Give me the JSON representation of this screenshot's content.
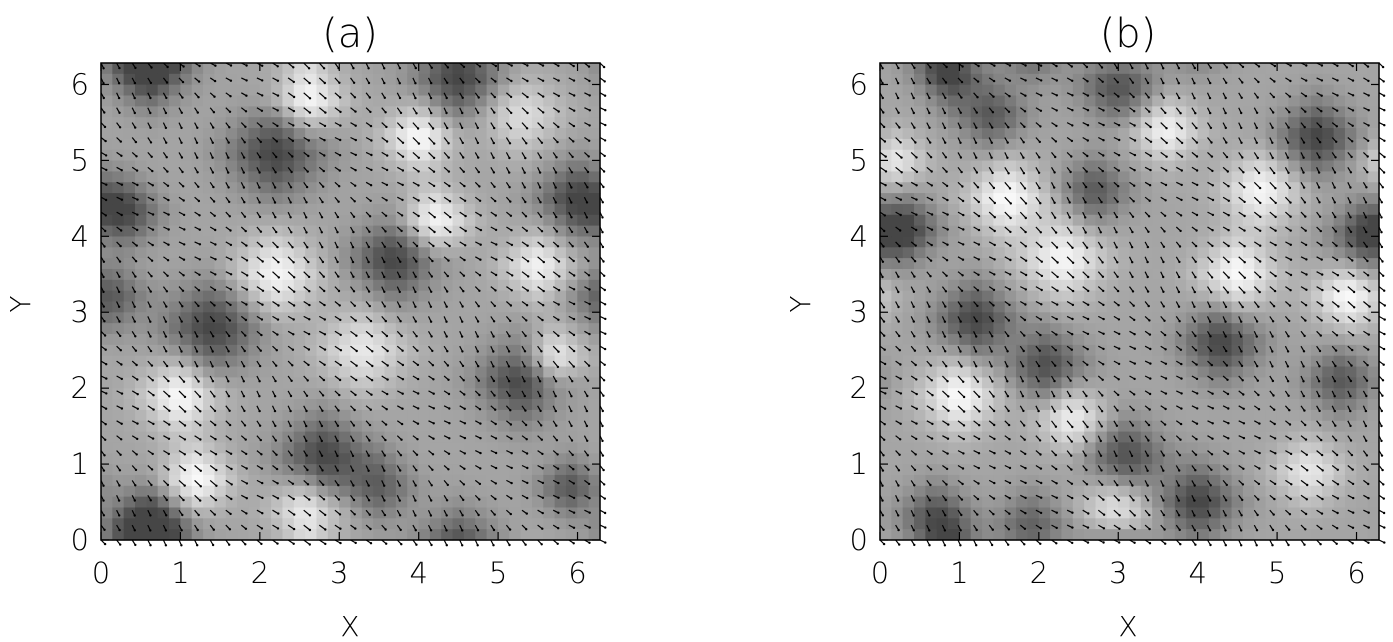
{
  "chart_data": [
    {
      "type": "heatmap",
      "title": "(a)",
      "xlabel": "X",
      "ylabel": "Y",
      "xlim": [
        0,
        6.283
      ],
      "ylim": [
        0,
        6.283
      ],
      "xticks": [
        "0",
        "1",
        "2",
        "3",
        "4",
        "5",
        "6"
      ],
      "yticks": [
        "0",
        "1",
        "2",
        "3",
        "4",
        "5",
        "6"
      ],
      "colormap": "grayscale",
      "overlay": "vector field arrows, predominantly pointing down-right",
      "dominant_band_direction": "diagonal from upper-left to lower-right",
      "colors": {
        "dark": "#111111",
        "light": "#f5f5f5",
        "arrow": "#000000"
      },
      "blobs": [
        {
          "x": 0.6,
          "y": 0.2,
          "v": -1.0,
          "s": 0.45
        },
        {
          "x": 2.8,
          "y": 1.1,
          "v": -1.0,
          "s": 0.5
        },
        {
          "x": 3.5,
          "y": 0.7,
          "v": -0.7,
          "s": 0.4
        },
        {
          "x": 1.4,
          "y": 2.8,
          "v": -1.0,
          "s": 0.55
        },
        {
          "x": 0.1,
          "y": 3.2,
          "v": -0.8,
          "s": 0.4
        },
        {
          "x": 5.3,
          "y": 2.1,
          "v": -1.0,
          "s": 0.5
        },
        {
          "x": 3.7,
          "y": 3.7,
          "v": -1.0,
          "s": 0.5
        },
        {
          "x": 0.3,
          "y": 4.3,
          "v": -0.9,
          "s": 0.4
        },
        {
          "x": 2.2,
          "y": 5.1,
          "v": -1.0,
          "s": 0.55
        },
        {
          "x": 0.6,
          "y": 6.2,
          "v": -0.9,
          "s": 0.45
        },
        {
          "x": 4.5,
          "y": 6.1,
          "v": -1.0,
          "s": 0.5
        },
        {
          "x": 6.0,
          "y": 4.5,
          "v": -1.0,
          "s": 0.45
        },
        {
          "x": 5.9,
          "y": 0.7,
          "v": -0.8,
          "s": 0.35
        },
        {
          "x": 1.0,
          "y": 1.9,
          "v": 0.9,
          "s": 0.45
        },
        {
          "x": 1.2,
          "y": 0.8,
          "v": 0.9,
          "s": 0.4
        },
        {
          "x": 2.6,
          "y": 0.4,
          "v": 0.8,
          "s": 0.4
        },
        {
          "x": 2.6,
          "y": 5.8,
          "v": 0.9,
          "s": 0.4
        },
        {
          "x": 4.0,
          "y": 5.3,
          "v": 0.9,
          "s": 0.4
        },
        {
          "x": 4.2,
          "y": 4.2,
          "v": 0.9,
          "s": 0.4
        },
        {
          "x": 5.5,
          "y": 3.6,
          "v": 0.8,
          "s": 0.4
        },
        {
          "x": 5.7,
          "y": 2.4,
          "v": 0.9,
          "s": 0.35
        },
        {
          "x": 2.2,
          "y": 3.5,
          "v": 0.85,
          "s": 0.5
        },
        {
          "x": 3.3,
          "y": 2.5,
          "v": 0.7,
          "s": 0.5
        },
        {
          "x": 5.3,
          "y": 5.6,
          "v": 0.6,
          "s": 0.45
        }
      ]
    },
    {
      "type": "heatmap",
      "title": "(b)",
      "xlabel": "X",
      "ylabel": "Y",
      "xlim": [
        0,
        6.283
      ],
      "ylim": [
        0,
        6.283
      ],
      "xticks": [
        "0",
        "1",
        "2",
        "3",
        "4",
        "5",
        "6"
      ],
      "yticks": [
        "0",
        "1",
        "2",
        "3",
        "4",
        "5",
        "6"
      ],
      "colormap": "grayscale",
      "overlay": "vector field arrows, predominantly pointing down-right",
      "dominant_band_direction": "diagonal from upper-left to lower-right",
      "colors": {
        "dark": "#111111",
        "light": "#f5f5f5",
        "arrow": "#000000"
      },
      "blobs": [
        {
          "x": 0.7,
          "y": 0.3,
          "v": -0.9,
          "s": 0.4
        },
        {
          "x": 1.9,
          "y": 0.2,
          "v": -0.7,
          "s": 0.4
        },
        {
          "x": 4.0,
          "y": 0.5,
          "v": -1.0,
          "s": 0.45
        },
        {
          "x": 3.1,
          "y": 1.1,
          "v": -0.9,
          "s": 0.45
        },
        {
          "x": 1.2,
          "y": 2.9,
          "v": -1.0,
          "s": 0.45
        },
        {
          "x": 2.1,
          "y": 2.3,
          "v": -0.9,
          "s": 0.45
        },
        {
          "x": 0.3,
          "y": 4.1,
          "v": -1.0,
          "s": 0.4
        },
        {
          "x": 4.3,
          "y": 2.6,
          "v": -1.0,
          "s": 0.45
        },
        {
          "x": 5.8,
          "y": 2.1,
          "v": -0.8,
          "s": 0.4
        },
        {
          "x": 5.5,
          "y": 5.3,
          "v": -1.0,
          "s": 0.45
        },
        {
          "x": 6.1,
          "y": 4.0,
          "v": -0.9,
          "s": 0.4
        },
        {
          "x": 3.0,
          "y": 6.0,
          "v": -0.9,
          "s": 0.45
        },
        {
          "x": 1.4,
          "y": 5.6,
          "v": -0.8,
          "s": 0.4
        },
        {
          "x": 0.9,
          "y": 6.1,
          "v": -0.9,
          "s": 0.35
        },
        {
          "x": 2.7,
          "y": 4.6,
          "v": -0.8,
          "s": 0.4
        },
        {
          "x": 1.0,
          "y": 1.9,
          "v": 0.9,
          "s": 0.45
        },
        {
          "x": 2.4,
          "y": 1.6,
          "v": 0.8,
          "s": 0.4
        },
        {
          "x": 2.3,
          "y": 3.7,
          "v": 0.85,
          "s": 0.5
        },
        {
          "x": 1.6,
          "y": 4.5,
          "v": 0.9,
          "s": 0.45
        },
        {
          "x": 4.5,
          "y": 3.5,
          "v": 0.9,
          "s": 0.45
        },
        {
          "x": 4.8,
          "y": 4.6,
          "v": 0.85,
          "s": 0.45
        },
        {
          "x": 3.6,
          "y": 5.4,
          "v": 0.8,
          "s": 0.4
        },
        {
          "x": 5.9,
          "y": 3.2,
          "v": 0.9,
          "s": 0.4
        },
        {
          "x": 3.0,
          "y": 0.4,
          "v": 0.8,
          "s": 0.4
        },
        {
          "x": 5.4,
          "y": 0.9,
          "v": 0.7,
          "s": 0.4
        },
        {
          "x": 0.2,
          "y": 5.0,
          "v": 0.7,
          "s": 0.35
        }
      ]
    }
  ]
}
